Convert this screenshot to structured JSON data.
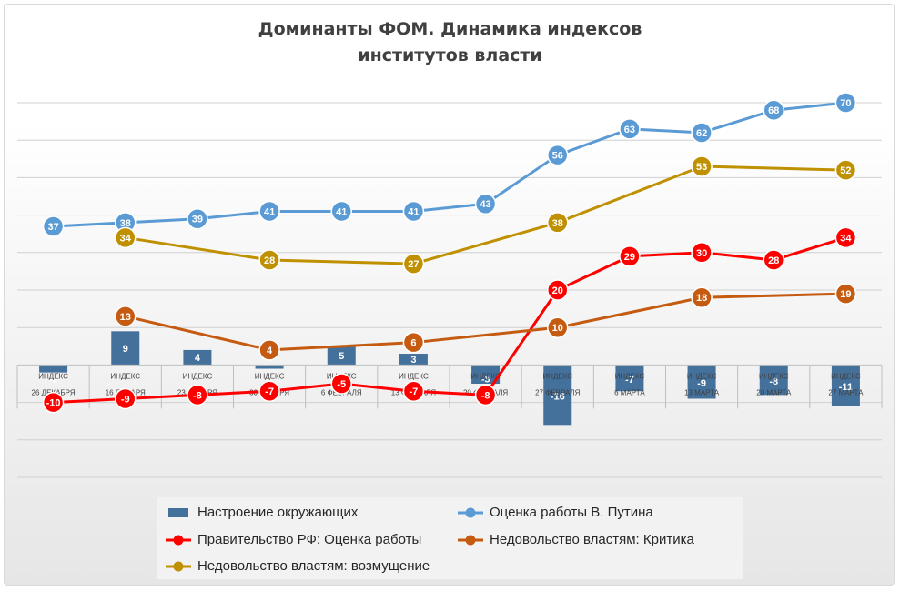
{
  "title_line1": "Доминанты ФОМ. Динамика индексов",
  "title_line2": "институтов власти",
  "colors": {
    "mood": "#44709c",
    "putin": "#5b9bd5",
    "government": "#ff0000",
    "criticism": "#c55a11",
    "outrage": "#bf9000"
  },
  "chart_data": {
    "type": "bar+line",
    "title": "Доминанты ФОМ. Динамика индексов институтов власти",
    "category_prefix": "ИНДЕКС",
    "categories": [
      "26 ДЕКАБРЯ",
      "16 ЯНВАРЯ",
      "23 ЯНВАРЯ",
      "30 ЯНВАРЯ",
      "6 ФЕВРАЛЯ",
      "13 ФЕВРАЛЯ",
      "20 ФЕВРАЛЯ",
      "27 ФЕВРАЛЯ",
      "6 МАРТА",
      "13 МАРТА",
      "20 МАРТА",
      "27 МАРТА"
    ],
    "ylim": [
      -30,
      70
    ],
    "grid": true,
    "legend_position": "bottom",
    "series": [
      {
        "key": "mood",
        "name": "Настроение окружающих",
        "kind": "bar",
        "values": [
          -2,
          9,
          4,
          -1,
          5,
          3,
          -5,
          -16,
          -7,
          -9,
          -8,
          -11
        ]
      },
      {
        "key": "putin",
        "name": "Оценка работы В. Путина",
        "kind": "line",
        "values": [
          37,
          38,
          39,
          41,
          41,
          41,
          43,
          56,
          63,
          62,
          68,
          70
        ]
      },
      {
        "key": "government",
        "name": "Правительство РФ: Оценка работы",
        "kind": "line",
        "values": [
          -10,
          -9,
          -8,
          -7,
          -5,
          -7,
          -8,
          20,
          29,
          30,
          28,
          34
        ]
      },
      {
        "key": "criticism",
        "name": "Недовольство властям:  Критика",
        "kind": "line",
        "values": [
          null,
          13,
          null,
          4,
          null,
          6,
          null,
          10,
          null,
          18,
          null,
          19
        ]
      },
      {
        "key": "outrage",
        "name": "Недовольство властям: возмущение",
        "kind": "line",
        "values": [
          null,
          34,
          null,
          28,
          null,
          27,
          null,
          38,
          null,
          53,
          null,
          52
        ]
      }
    ]
  },
  "legend": [
    {
      "key": "mood",
      "label": "Настроение окружающих",
      "marker": "bar"
    },
    {
      "key": "putin",
      "label": "Оценка работы В. Путина",
      "marker": "line"
    },
    {
      "key": "government",
      "label": "Правительство РФ: Оценка работы",
      "marker": "line"
    },
    {
      "key": "criticism",
      "label": "Недовольство властям:  Критика",
      "marker": "line"
    },
    {
      "key": "outrage",
      "label": "Недовольство властям: возмущение",
      "marker": "line"
    }
  ]
}
